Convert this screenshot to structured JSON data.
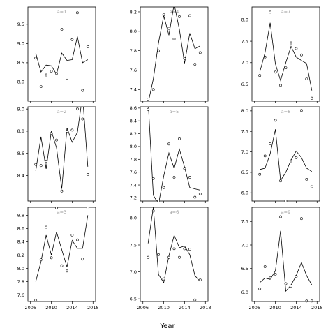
{
  "chart_data": {
    "type": "scatter",
    "xlabel": "Year",
    "xlim": [
      2005.5,
      2018.5
    ],
    "xticks": [
      2006,
      2010,
      2014,
      2018
    ],
    "panels": [
      {
        "label": "a=1",
        "ylim": [
          7.5,
          9.95
        ],
        "yticks": [
          8.0,
          8.5,
          9.0,
          9.5
        ],
        "points": [
          [
            2007,
            8.62
          ],
          [
            2008,
            7.88
          ],
          [
            2009,
            8.18
          ],
          [
            2010,
            8.28
          ],
          [
            2011,
            8.22
          ],
          [
            2012,
            9.37
          ],
          [
            2013,
            8.1
          ],
          [
            2014,
            9.1
          ],
          [
            2015,
            9.8
          ],
          [
            2016,
            7.78
          ],
          [
            2017,
            8.92
          ]
        ],
        "line": [
          [
            2007,
            8.75
          ],
          [
            2008,
            8.26
          ],
          [
            2009,
            8.44
          ],
          [
            2010,
            8.42
          ],
          [
            2011,
            8.2
          ],
          [
            2012,
            8.75
          ],
          [
            2013,
            8.56
          ],
          [
            2014,
            8.58
          ],
          [
            2015,
            9.18
          ],
          [
            2016,
            8.5
          ],
          [
            2017,
            8.58
          ]
        ]
      },
      {
        "label": "a=4",
        "ylim": [
          7.28,
          8.25
        ],
        "yticks": [
          7.4,
          7.6,
          7.8,
          8.0,
          8.2
        ],
        "points": [
          [
            2007,
            7.3
          ],
          [
            2008,
            7.4
          ],
          [
            2009,
            7.8
          ],
          [
            2010,
            8.17
          ],
          [
            2011,
            8.03
          ],
          [
            2012,
            7.92
          ],
          [
            2013,
            8.15
          ],
          [
            2014,
            7.72
          ],
          [
            2015,
            8.16
          ],
          [
            2016,
            7.66
          ],
          [
            2017,
            7.78
          ]
        ],
        "line": [
          [
            2007,
            7.26
          ],
          [
            2008,
            7.51
          ],
          [
            2009,
            7.88
          ],
          [
            2010,
            8.16
          ],
          [
            2011,
            7.96
          ],
          [
            2012,
            8.28
          ],
          [
            2013,
            8.02
          ],
          [
            2014,
            7.67
          ],
          [
            2015,
            7.98
          ],
          [
            2016,
            7.82
          ],
          [
            2017,
            7.85
          ]
        ]
      },
      {
        "label": "a=7",
        "ylim": [
          6.1,
          8.3
        ],
        "yticks": [
          6.5,
          7.0,
          7.5,
          8.0
        ],
        "points": [
          [
            2007,
            6.7
          ],
          [
            2008,
            7.13
          ],
          [
            2009,
            8.18
          ],
          [
            2010,
            6.78
          ],
          [
            2011,
            6.47
          ],
          [
            2012,
            6.88
          ],
          [
            2013,
            7.46
          ],
          [
            2014,
            7.33
          ],
          [
            2015,
            7.18
          ],
          [
            2016,
            6.62
          ],
          [
            2017,
            6.17
          ]
        ],
        "line": [
          [
            2007,
            6.78
          ],
          [
            2008,
            7.23
          ],
          [
            2009,
            7.93
          ],
          [
            2010,
            6.97
          ],
          [
            2011,
            6.58
          ],
          [
            2012,
            7.0
          ],
          [
            2013,
            7.38
          ],
          [
            2014,
            7.13
          ],
          [
            2015,
            7.05
          ],
          [
            2016,
            6.98
          ],
          [
            2017,
            6.35
          ]
        ]
      },
      {
        "label": "a=2",
        "ylim": [
          8.17,
          9.02
        ],
        "yticks": [
          8.4,
          8.6,
          8.8,
          9.0
        ],
        "points": [
          [
            2007,
            8.5
          ],
          [
            2008,
            8.49
          ],
          [
            2009,
            8.53
          ],
          [
            2010,
            8.78
          ],
          [
            2011,
            8.72
          ],
          [
            2012,
            8.26
          ],
          [
            2013,
            8.8
          ],
          [
            2014,
            8.81
          ],
          [
            2015,
            9.0
          ],
          [
            2016,
            8.91
          ],
          [
            2017,
            8.41
          ]
        ],
        "line": [
          [
            2007,
            8.44
          ],
          [
            2008,
            8.75
          ],
          [
            2009,
            8.46
          ],
          [
            2010,
            8.8
          ],
          [
            2011,
            8.65
          ],
          [
            2012,
            8.28
          ],
          [
            2013,
            8.83
          ],
          [
            2014,
            8.7
          ],
          [
            2015,
            8.79
          ],
          [
            2016,
            9.12
          ],
          [
            2017,
            8.48
          ]
        ]
      },
      {
        "label": "a=5",
        "ylim": [
          7.15,
          8.62
        ],
        "yticks": [
          7.2,
          7.4,
          7.6,
          7.8,
          8.0,
          8.2,
          8.4,
          8.6
        ],
        "points": [
          [
            2007,
            8.58
          ],
          [
            2008,
            7.5
          ],
          [
            2009,
            7.15
          ],
          [
            2010,
            7.36
          ],
          [
            2011,
            8.04
          ],
          [
            2012,
            7.52
          ],
          [
            2013,
            8.12
          ],
          [
            2014,
            7.66
          ],
          [
            2015,
            7.52
          ],
          [
            2016,
            7.21
          ],
          [
            2017,
            7.26
          ]
        ],
        "line": [
          [
            2007,
            8.72
          ],
          [
            2008,
            7.24
          ],
          [
            2009,
            7.1
          ],
          [
            2010,
            7.54
          ],
          [
            2011,
            7.9
          ],
          [
            2012,
            7.66
          ],
          [
            2013,
            7.96
          ],
          [
            2014,
            7.68
          ],
          [
            2015,
            7.36
          ],
          [
            2016,
            7.34
          ],
          [
            2017,
            7.32
          ]
        ]
      },
      {
        "label": "a=8",
        "ylim": [
          5.8,
          8.1
        ],
        "yticks": [
          6.0,
          6.5,
          7.0,
          7.5,
          8.0
        ],
        "points": [
          [
            2007,
            6.45
          ],
          [
            2008,
            6.9
          ],
          [
            2009,
            7.2
          ],
          [
            2010,
            7.77
          ],
          [
            2011,
            6.29
          ],
          [
            2012,
            5.8
          ],
          [
            2013,
            6.78
          ],
          [
            2014,
            6.86
          ],
          [
            2015,
            8.01
          ],
          [
            2016,
            6.33
          ],
          [
            2017,
            6.15
          ]
        ],
        "line": [
          [
            2007,
            6.57
          ],
          [
            2008,
            6.6
          ],
          [
            2009,
            6.95
          ],
          [
            2010,
            7.55
          ],
          [
            2011,
            6.3
          ],
          [
            2012,
            6.5
          ],
          [
            2013,
            6.8
          ],
          [
            2014,
            7.02
          ],
          [
            2015,
            6.86
          ],
          [
            2016,
            6.6
          ],
          [
            2017,
            6.52
          ]
        ]
      },
      {
        "label": "a=3",
        "ylim": [
          7.5,
          8.92
        ],
        "yticks": [
          7.6,
          7.8,
          8.0,
          8.2,
          8.4,
          8.6,
          8.8
        ],
        "points": [
          [
            2007,
            7.52
          ],
          [
            2008,
            8.13
          ],
          [
            2009,
            8.62
          ],
          [
            2010,
            8.16
          ],
          [
            2011,
            8.91
          ],
          [
            2012,
            8.04
          ],
          [
            2013,
            7.96
          ],
          [
            2014,
            8.5
          ],
          [
            2015,
            8.43
          ],
          [
            2016,
            8.14
          ],
          [
            2017,
            8.91
          ]
        ],
        "line": [
          [
            2007,
            7.8
          ],
          [
            2008,
            8.1
          ],
          [
            2009,
            8.5
          ],
          [
            2010,
            8.2
          ],
          [
            2011,
            8.55
          ],
          [
            2012,
            8.28
          ],
          [
            2013,
            8.02
          ],
          [
            2014,
            8.42
          ],
          [
            2015,
            8.3
          ],
          [
            2016,
            8.3
          ],
          [
            2017,
            8.8
          ]
        ]
      },
      {
        "label": "a=6",
        "ylim": [
          6.45,
          8.2
        ],
        "yticks": [
          6.5,
          7.0,
          7.5,
          8.0
        ],
        "points": [
          [
            2007,
            7.27
          ],
          [
            2008,
            8.13
          ],
          [
            2009,
            7.32
          ],
          [
            2010,
            6.87
          ],
          [
            2011,
            7.27
          ],
          [
            2012,
            7.43
          ],
          [
            2013,
            7.27
          ],
          [
            2014,
            7.43
          ],
          [
            2015,
            7.42
          ],
          [
            2016,
            6.48
          ],
          [
            2017,
            6.85
          ]
        ],
        "line": [
          [
            2007,
            7.53
          ],
          [
            2008,
            8.2
          ],
          [
            2009,
            6.95
          ],
          [
            2010,
            6.8
          ],
          [
            2011,
            7.3
          ],
          [
            2012,
            7.68
          ],
          [
            2013,
            7.45
          ],
          [
            2014,
            7.48
          ],
          [
            2015,
            7.32
          ],
          [
            2016,
            6.93
          ],
          [
            2017,
            6.82
          ]
        ]
      },
      {
        "label": "a=9",
        "ylim": [
          5.8,
          7.8
        ],
        "yticks": [
          6.0,
          6.5,
          7.0,
          7.5
        ],
        "points": [
          [
            2007,
            6.07
          ],
          [
            2008,
            6.54
          ],
          [
            2009,
            6.3
          ],
          [
            2010,
            6.38
          ],
          [
            2011,
            7.6
          ],
          [
            2012,
            6.18
          ],
          [
            2013,
            6.13
          ],
          [
            2014,
            6.33
          ],
          [
            2015,
            7.56
          ],
          [
            2016,
            5.81
          ],
          [
            2017,
            5.81
          ]
        ],
        "line": [
          [
            2007,
            6.2
          ],
          [
            2008,
            6.3
          ],
          [
            2009,
            6.27
          ],
          [
            2010,
            6.45
          ],
          [
            2011,
            7.3
          ],
          [
            2012,
            6.02
          ],
          [
            2013,
            6.15
          ],
          [
            2014,
            6.35
          ],
          [
            2015,
            6.63
          ],
          [
            2016,
            6.35
          ],
          [
            2017,
            6.15
          ]
        ]
      }
    ]
  }
}
